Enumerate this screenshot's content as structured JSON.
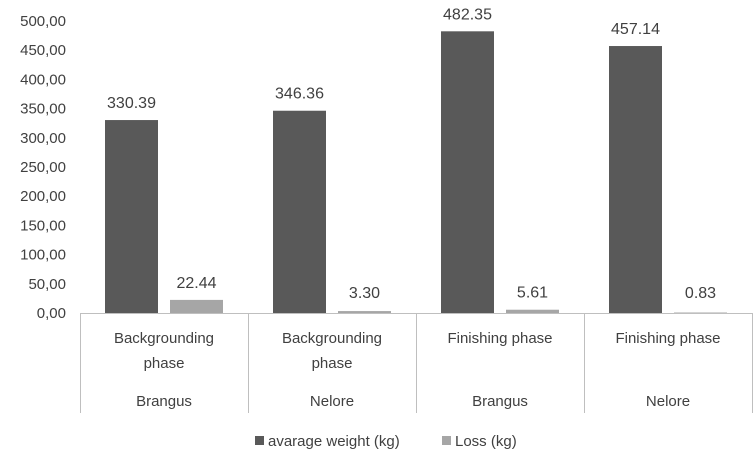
{
  "chart_data": {
    "type": "bar",
    "categories": [
      {
        "phase": "Backgrounding phase",
        "breed": "Brangus"
      },
      {
        "phase": "Backgrounding phase",
        "breed": "Nelore"
      },
      {
        "phase": "Finishing phase",
        "breed": "Brangus"
      },
      {
        "phase": "Finishing phase",
        "breed": "Nelore"
      }
    ],
    "category_labels": [
      {
        "phase_lines": [
          "Backgrounding",
          "phase"
        ],
        "breed": "Brangus"
      },
      {
        "phase_lines": [
          "Backgrounding",
          "phase"
        ],
        "breed": "Nelore"
      },
      {
        "phase_lines": [
          "Finishing phase"
        ],
        "breed": "Brangus"
      },
      {
        "phase_lines": [
          "Finishing phase"
        ],
        "breed": "Nelore"
      }
    ],
    "series": [
      {
        "name": "avarage weight (kg)",
        "values": [
          330.39,
          346.36,
          482.35,
          457.14
        ],
        "labels": [
          "330.39",
          "346.36",
          "482.35",
          "457.14"
        ],
        "color": "#595959"
      },
      {
        "name": "Loss (kg)",
        "values": [
          22.44,
          3.3,
          5.61,
          0.83
        ],
        "labels": [
          "22.44",
          "3.30",
          "5.61",
          "0.83"
        ],
        "color": "#a6a6a6"
      }
    ],
    "ylim": [
      0,
      500
    ],
    "yticks": [
      "0,00",
      "50,00",
      "100,00",
      "150,00",
      "200,00",
      "250,00",
      "300,00",
      "350,00",
      "400,00",
      "450,00",
      "500,00"
    ],
    "grid": false,
    "legend_position": "bottom"
  }
}
